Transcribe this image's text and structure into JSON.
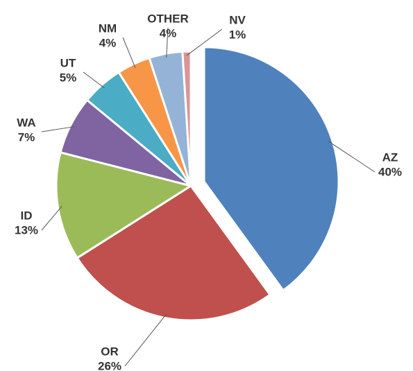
{
  "chart_data": {
    "type": "pie",
    "categories": [
      "AZ",
      "OR",
      "ID",
      "WA",
      "UT",
      "NM",
      "OTHER",
      "NV"
    ],
    "values": [
      40,
      26,
      13,
      7,
      5,
      4,
      4,
      1
    ],
    "value_labels": [
      "40%",
      "26%",
      "13%",
      "7%",
      "5%",
      "4%",
      "4%",
      "1%"
    ],
    "colors": [
      "#4f81bd",
      "#c0504d",
      "#9bbb59",
      "#8064a2",
      "#4bacc6",
      "#f79646",
      "#95b3d7",
      "#d99694"
    ],
    "exploded": [
      0
    ]
  }
}
